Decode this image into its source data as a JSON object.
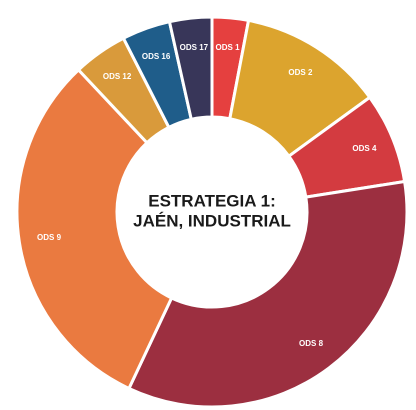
{
  "chart_data": {
    "type": "donut",
    "title": [
      "ESTRATEGIA 1:",
      "JAÉN, INDUSTRIAL"
    ],
    "categories": [
      "ODS 1",
      "ODS 2",
      "ODS 4",
      "ODS 8",
      "ODS 9",
      "ODS 12",
      "ODS 16",
      "ODS 17"
    ],
    "values": [
      3,
      12,
      7.5,
      34.5,
      31,
      4.5,
      4,
      3.5
    ],
    "colors": [
      "#e5403f",
      "#dca42e",
      "#d33b40",
      "#9c2f40",
      "#ea7a40",
      "#d99a3b",
      "#1f5d8a",
      "#383659"
    ]
  }
}
